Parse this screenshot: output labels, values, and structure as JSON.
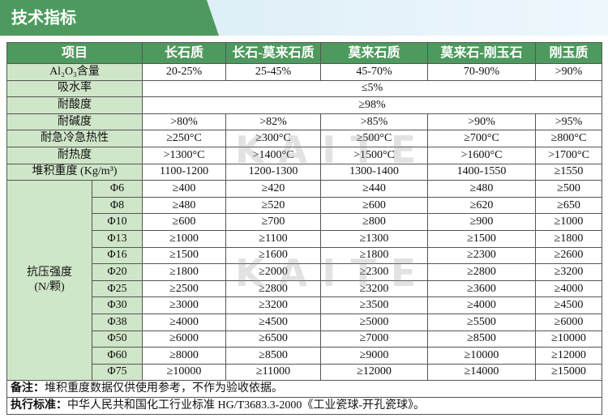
{
  "title": "技术指标",
  "watermark": "KAITE",
  "table": {
    "header": [
      "项目",
      "长石质",
      "长石-莫来石质",
      "莫来石质",
      "莫来石-刚玉石",
      "刚玉质"
    ],
    "rows": [
      {
        "label": "Al₂O₃含量",
        "cells": [
          "20-25%",
          "25-45%",
          "45-70%",
          "70-90%",
          ">90%"
        ]
      },
      {
        "label": "吸水率",
        "cells": [
          "≤5%"
        ]
      },
      {
        "label": "耐酸度",
        "cells": [
          "≥98%"
        ]
      },
      {
        "label": "耐碱度",
        "cells": [
          ">80%",
          ">82%",
          ">85%",
          ">90%",
          ">95%"
        ]
      },
      {
        "label": "耐急冷急热性",
        "cells": [
          "≥250°C",
          "≥300°C",
          "≥500°C",
          "≥700°C",
          "≥800°C"
        ]
      },
      {
        "label": "耐热度",
        "cells": [
          ">1300°C",
          ">1400°C",
          ">1500°C",
          ">1600°C",
          ">1700°C"
        ]
      },
      {
        "label": "堆积重度 (Kg/m³)",
        "cells": [
          "1100-1200",
          "1200-1300",
          "1300-1400",
          "1400-1550",
          "≥1550"
        ]
      }
    ],
    "strength": {
      "label": [
        "抗压强度",
        "(N/颗)"
      ],
      "rows": [
        {
          "size": "Φ6",
          "cells": [
            "≥400",
            "≥420",
            "≥440",
            "≥480",
            "≥500"
          ]
        },
        {
          "size": "Φ8",
          "cells": [
            "≥480",
            "≥520",
            "≥600",
            "≥620",
            "≥650"
          ]
        },
        {
          "size": "Φ10",
          "cells": [
            "≥600",
            "≥700",
            "≥800",
            "≥900",
            "≥1000"
          ]
        },
        {
          "size": "Φ13",
          "cells": [
            "≥1000",
            "≥1100",
            "≥1300",
            "≥1500",
            "≥1800"
          ]
        },
        {
          "size": "Φ16",
          "cells": [
            "≥1500",
            "≥1600",
            "≥1800",
            "≥2300",
            "≥2600"
          ]
        },
        {
          "size": "Φ20",
          "cells": [
            "≥1800",
            "≥2000",
            "≥2300",
            "≥2800",
            "≥3200"
          ]
        },
        {
          "size": "Φ25",
          "cells": [
            "≥2500",
            "≥2800",
            "≥3200",
            "≥3600",
            "≥4000"
          ]
        },
        {
          "size": "Φ30",
          "cells": [
            "≥3000",
            "≥3200",
            "≥3500",
            "≥4000",
            "≥4500"
          ]
        },
        {
          "size": "Φ38",
          "cells": [
            "≥4000",
            "≥4500",
            "≥5000",
            "≥5500",
            "≥6000"
          ]
        },
        {
          "size": "Φ50",
          "cells": [
            "≥6000",
            "≥6500",
            "≥7000",
            "≥8500",
            "≥10000"
          ]
        },
        {
          "size": "Φ60",
          "cells": [
            "≥8000",
            "≥8500",
            "≥9000",
            "≥10000",
            "≥12000"
          ]
        },
        {
          "size": "Φ75",
          "cells": [
            "≥10000",
            "≥11000",
            "≥12000",
            "≥14000",
            "≥15000"
          ]
        }
      ]
    },
    "notes": [
      {
        "label": "备注：",
        "text": "堆积重度数据仅供使用参考，不作为验收依据。"
      },
      {
        "label": "执行标准：",
        "text": "中华人民共和国化工行业标准 HG/T3683.3-2000《工业瓷球-开孔瓷球》。"
      }
    ]
  }
}
